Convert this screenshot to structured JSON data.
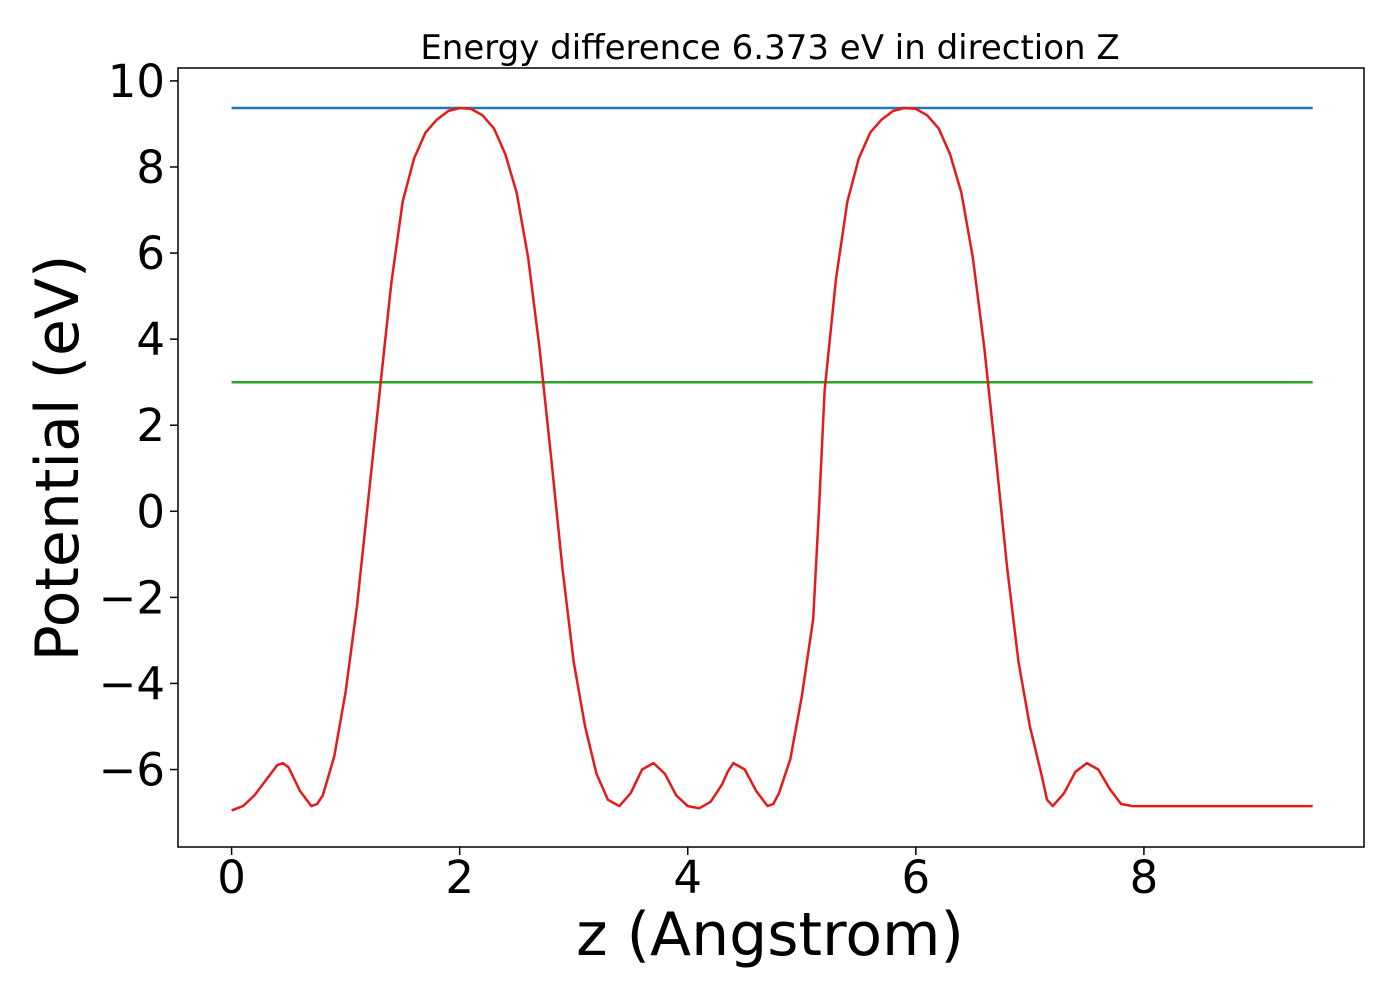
{
  "chart_data": {
    "type": "line",
    "title": "Energy difference 6.373 eV in direction Z",
    "xlabel": "z (Angstrom)",
    "ylabel": "Potential (eV)",
    "xlim": [
      -0.47,
      9.93
    ],
    "ylim": [
      -7.8,
      10.3
    ],
    "xticks": [
      0,
      2,
      4,
      6,
      8
    ],
    "yticks": [
      -6,
      -4,
      -2,
      0,
      2,
      4,
      6,
      8,
      10
    ],
    "xtick_labels": [
      "0",
      "2",
      "4",
      "6",
      "8"
    ],
    "ytick_labels": [
      "−6",
      "−4",
      "−2",
      "0",
      "2",
      "4",
      "6",
      "8",
      "10"
    ],
    "grid": false,
    "series": [
      {
        "color": "#e41a1c",
        "x": [
          0.0,
          0.1,
          0.2,
          0.3,
          0.4,
          0.45,
          0.5,
          0.6,
          0.7,
          0.75,
          0.8,
          0.9,
          1.0,
          1.1,
          1.2,
          1.3,
          1.4,
          1.5,
          1.6,
          1.7,
          1.8,
          1.9,
          2.0,
          2.1,
          2.2,
          2.3,
          2.4,
          2.5,
          2.6,
          2.7,
          2.8,
          2.9,
          3.0,
          3.1,
          3.2,
          3.3,
          3.4,
          3.5,
          3.6,
          3.7,
          3.8,
          3.9,
          4.0,
          4.1,
          4.2,
          4.3,
          4.35,
          4.4,
          4.5,
          4.6,
          4.7,
          4.75,
          4.8,
          4.9,
          5.0,
          5.1,
          5.15,
          5.2,
          5.3,
          5.4,
          5.5,
          5.6,
          5.7,
          5.8,
          5.9,
          6.0,
          6.1,
          6.2,
          6.3,
          6.4,
          6.5,
          6.6,
          6.7,
          6.8,
          6.9,
          7.0,
          7.1,
          7.15,
          7.2,
          7.3,
          7.4,
          7.5,
          7.6,
          7.7,
          7.8,
          7.9,
          8.0,
          8.1,
          8.2,
          8.3,
          8.4,
          8.5,
          8.6,
          8.7,
          8.8,
          8.85,
          8.9,
          9.0,
          9.1,
          9.15,
          9.2,
          9.3,
          9.4,
          9.48
        ],
        "y": [
          -6.95,
          -6.85,
          -6.6,
          -6.25,
          -5.9,
          -5.85,
          -5.95,
          -6.5,
          -6.85,
          -6.8,
          -6.6,
          -5.7,
          -4.2,
          -2.2,
          0.3,
          2.8,
          5.3,
          7.2,
          8.2,
          8.8,
          9.1,
          9.3,
          9.37,
          9.35,
          9.2,
          8.9,
          8.3,
          7.4,
          5.9,
          3.8,
          1.3,
          -1.3,
          -3.5,
          -5.0,
          -6.1,
          -6.7,
          -6.85,
          -6.55,
          -6.0,
          -5.85,
          -6.1,
          -6.6,
          -6.85,
          -6.9,
          -6.75,
          -6.35,
          -6.05,
          -5.85,
          -6.0,
          -6.5,
          -6.85,
          -6.8,
          -6.55,
          -5.75,
          -4.3,
          -2.5,
          0.0,
          2.8,
          5.4,
          7.2,
          8.2,
          8.8,
          9.1,
          9.3,
          9.37,
          9.35,
          9.2,
          8.9,
          8.3,
          7.4,
          5.9,
          3.8,
          1.3,
          -1.3,
          -3.5,
          -5.0,
          -6.1,
          -6.7,
          -6.85,
          -6.55,
          -6.05,
          -5.85,
          -6.0,
          -6.45,
          -6.8,
          -6.85,
          -6.85,
          -6.85,
          -6.85,
          -6.85,
          -6.85,
          -6.85,
          -6.85,
          -6.85,
          -6.85,
          -6.85,
          -6.85,
          -6.85,
          -6.85,
          -6.85,
          -6.85,
          -6.85,
          -6.85,
          -6.85
        ]
      },
      {
        "color": "#1f77b4",
        "x": [
          0.0,
          9.48
        ],
        "y": [
          9.37,
          9.37
        ]
      },
      {
        "color": "#2ca02c",
        "x": [
          0.0,
          9.48
        ],
        "y": [
          3.0,
          3.0
        ]
      }
    ]
  }
}
